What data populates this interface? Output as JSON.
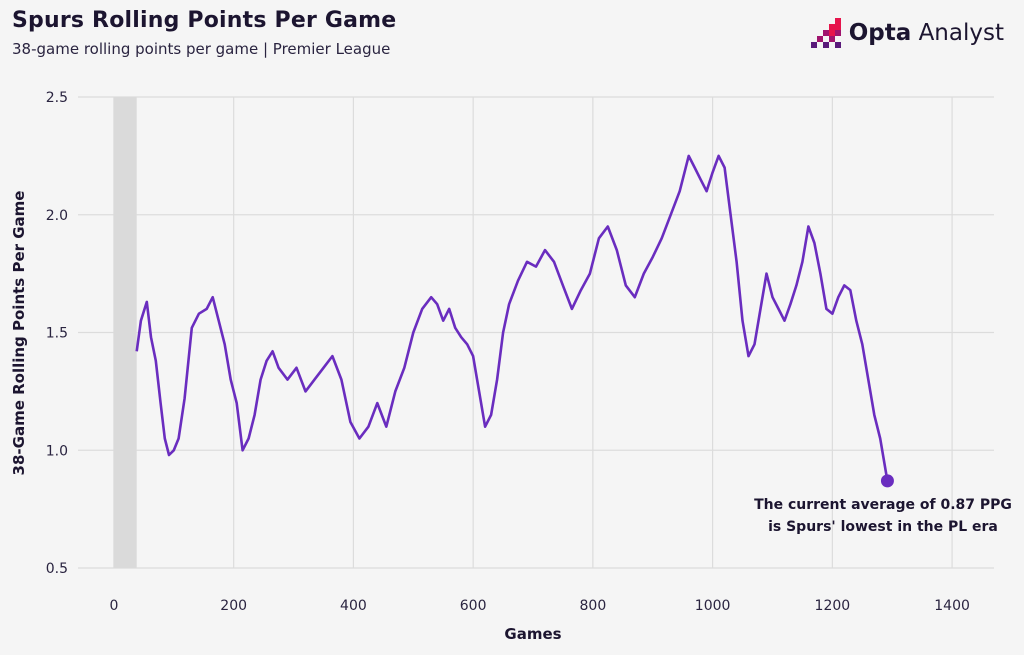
{
  "header": {
    "title": "Spurs Rolling Points Per Game",
    "subtitle": "38-game rolling points per game | Premier League"
  },
  "brand": {
    "name_bold": "Opta",
    "name_light": "Analyst",
    "logo_icon": "opta-pixel-logo-icon",
    "logo_colors": [
      "#e6154c",
      "#a0146e",
      "#5a1a7a"
    ]
  },
  "colors": {
    "line": "#6a2dbf",
    "grid": "#dcdcdc",
    "shade": "#dadada",
    "background": "#f5f5f5"
  },
  "chart_data": {
    "type": "line",
    "title": "Spurs Rolling Points Per Game",
    "subtitle": "38-game rolling points per game | Premier League",
    "xlabel": "Games",
    "ylabel": "38-Game Rolling Points Per Game",
    "xlim": [
      -60,
      1470
    ],
    "ylim": [
      0.5,
      2.5
    ],
    "xticks": [
      0,
      200,
      400,
      600,
      800,
      1000,
      1200,
      1400
    ],
    "yticks": [
      0.5,
      1.0,
      1.5,
      2.0,
      2.5
    ],
    "xtick_labels": [
      "0",
      "200",
      "400",
      "600",
      "800",
      "1000",
      "1200",
      "1400"
    ],
    "ytick_labels": [
      "0.5",
      "1.0",
      "1.5",
      "2.0",
      "2.5"
    ],
    "grid": true,
    "shaded_region": {
      "x_start": 0,
      "x_end": 38
    },
    "series": [
      {
        "x": [
          38,
          45,
          55,
          62,
          70,
          78,
          85,
          92,
          100,
          108,
          118,
          130,
          142,
          155,
          165,
          175,
          185,
          195,
          205,
          215,
          225,
          235,
          245,
          255,
          265,
          275,
          290,
          305,
          320,
          335,
          350,
          365,
          380,
          395,
          410,
          425,
          440,
          455,
          470,
          485,
          500,
          515,
          530,
          540,
          550,
          560,
          570,
          580,
          590,
          600,
          610,
          620,
          630,
          640,
          650,
          660,
          675,
          690,
          705,
          720,
          735,
          750,
          765,
          780,
          795,
          810,
          825,
          840,
          855,
          870,
          885,
          900,
          915,
          930,
          945,
          960,
          970,
          980,
          990,
          1000,
          1010,
          1020,
          1030,
          1040,
          1050,
          1060,
          1070,
          1080,
          1090,
          1100,
          1110,
          1120,
          1130,
          1140,
          1150,
          1160,
          1170,
          1180,
          1190,
          1200,
          1210,
          1220,
          1230,
          1240,
          1250,
          1260,
          1270,
          1280,
          1292
        ],
        "values": [
          1.42,
          1.55,
          1.63,
          1.48,
          1.38,
          1.2,
          1.05,
          0.98,
          1.0,
          1.05,
          1.22,
          1.52,
          1.58,
          1.6,
          1.65,
          1.55,
          1.45,
          1.3,
          1.2,
          1.0,
          1.05,
          1.15,
          1.3,
          1.38,
          1.42,
          1.35,
          1.3,
          1.35,
          1.25,
          1.3,
          1.35,
          1.4,
          1.3,
          1.12,
          1.05,
          1.1,
          1.2,
          1.1,
          1.25,
          1.35,
          1.5,
          1.6,
          1.65,
          1.62,
          1.55,
          1.6,
          1.52,
          1.48,
          1.45,
          1.4,
          1.25,
          1.1,
          1.15,
          1.3,
          1.5,
          1.62,
          1.72,
          1.8,
          1.78,
          1.85,
          1.8,
          1.7,
          1.6,
          1.68,
          1.75,
          1.9,
          1.95,
          1.85,
          1.7,
          1.65,
          1.75,
          1.82,
          1.9,
          2.0,
          2.1,
          2.25,
          2.2,
          2.15,
          2.1,
          2.18,
          2.25,
          2.2,
          2.0,
          1.8,
          1.55,
          1.4,
          1.45,
          1.6,
          1.75,
          1.65,
          1.6,
          1.55,
          1.62,
          1.7,
          1.8,
          1.95,
          1.88,
          1.75,
          1.6,
          1.58,
          1.65,
          1.7,
          1.68,
          1.55,
          1.45,
          1.3,
          1.15,
          1.05,
          0.87
        ]
      }
    ],
    "current_point": {
      "x": 1292,
      "y": 0.87
    },
    "annotation": {
      "line1": "The current average of 0.87 PPG",
      "line2": "is Spurs' lowest in the PL era"
    }
  }
}
